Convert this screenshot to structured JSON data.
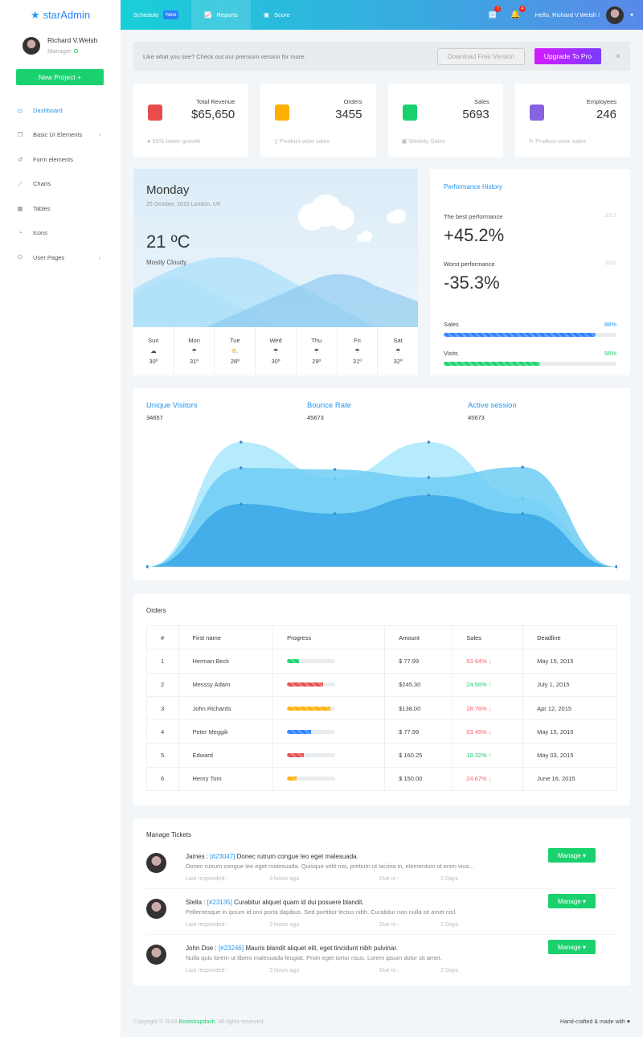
{
  "brand": {
    "name_a": "star",
    "name_b": "Admin"
  },
  "user": {
    "name": "Richard V.Welsh",
    "role": "Manager",
    "status_color": "#19d26e"
  },
  "sidebar": {
    "new_project": "New Project +",
    "items": [
      {
        "label": "Dashboard",
        "icon": "monitor-icon",
        "active": true
      },
      {
        "label": "Basic UI Elements",
        "icon": "copy-icon",
        "chevron": true
      },
      {
        "label": "Form elements",
        "icon": "restore-icon"
      },
      {
        "label": "Charts",
        "icon": "chart-line-icon"
      },
      {
        "label": "Tables",
        "icon": "table-icon"
      },
      {
        "label": "Icons",
        "icon": "palette-icon"
      },
      {
        "label": "User Pages",
        "icon": "power-icon",
        "chevron": true
      }
    ]
  },
  "topbar": {
    "schedule": "Schedule",
    "new_badge": "New",
    "reports": "Reports",
    "score": "Score",
    "messages_count": "7",
    "notifications_count": "4",
    "greeting": "Hello, Richard V.Welsh !"
  },
  "banner": {
    "text": "Like what you see? Check out our premium version for more.",
    "download": "Download Free Version",
    "upgrade": "Upgrade To Pro",
    "close": "×"
  },
  "stats": [
    {
      "label": "Total Revenue",
      "value": "$65,650",
      "sub": "65% lower growth",
      "color": "#e84c4c"
    },
    {
      "label": "Orders",
      "value": "3455",
      "sub": "Product-wise sales",
      "color": "#ffaf00"
    },
    {
      "label": "Sales",
      "value": "5693",
      "sub": "Weekly Sales",
      "color": "#19d26e"
    },
    {
      "label": "Employees",
      "value": "246",
      "sub": "Product-wise sales",
      "color": "#8862e0"
    }
  ],
  "weather": {
    "day": "Monday",
    "date": "25 October, 2016 London, UK",
    "temp": "21 ºC",
    "condition": "Mostly Cloudy",
    "forecast": [
      {
        "d": "Sun",
        "i": "☁",
        "t": "30º"
      },
      {
        "d": "Mon",
        "i": "☂",
        "t": "31º"
      },
      {
        "d": "Tue",
        "i": "⛅",
        "t": "28º"
      },
      {
        "d": "Wed",
        "i": "☂",
        "t": "30º"
      },
      {
        "d": "Thu",
        "i": "☂",
        "t": "29º"
      },
      {
        "d": "Fri",
        "i": "☂",
        "t": "31º"
      },
      {
        "d": "Sat",
        "i": "☂",
        "t": "32º"
      }
    ]
  },
  "performance": {
    "title": "Performance History",
    "best_label": "The best performance",
    "best_year": "2017",
    "best_value": "+45.2%",
    "worst_label": "Worst performance",
    "worst_year": "2015",
    "worst_value": "-35.3%",
    "sales_label": "Sales",
    "sales_pct": "88%",
    "sales_value": 88,
    "visits_label": "Visits",
    "visits_pct": "56%",
    "visits_value": 56
  },
  "chart_data": {
    "type": "area",
    "x": [
      1,
      2,
      3,
      4,
      5,
      6
    ],
    "series": [
      {
        "name": "Unique Visitors",
        "total": "34657",
        "values": [
          0,
          155,
          110,
          155,
          85,
          0
        ],
        "color": "#a8e8fb"
      },
      {
        "name": "Bounce Rate",
        "total": "45673",
        "values": [
          0,
          123,
          121,
          111,
          124,
          0
        ],
        "color": "#6fcdf3"
      },
      {
        "name": "Active session",
        "total": "45673",
        "values": [
          0,
          78,
          66,
          89,
          66,
          0
        ],
        "color": "#3aa8e6"
      }
    ]
  },
  "orders": {
    "title": "Orders",
    "columns": [
      "#",
      "First name",
      "Progress",
      "Amount",
      "Sales",
      "Deadline"
    ],
    "rows": [
      {
        "n": "1",
        "name": "Herman Beck",
        "progress": 25,
        "pc": "#19d26e",
        "amount": "$ 77.99",
        "sales": "53.64% ↓",
        "up": false,
        "deadline": "May 15, 2015"
      },
      {
        "n": "2",
        "name": "Messsy Adam",
        "progress": 75,
        "pc": "#e84c4c",
        "amount": "$245.30",
        "sales": "24.56% ↑",
        "up": true,
        "deadline": "July 1, 2015"
      },
      {
        "n": "3",
        "name": "John Richards",
        "progress": 90,
        "pc": "#ffaf00",
        "amount": "$138.00",
        "sales": "28.76% ↓",
        "up": false,
        "deadline": "Apr 12, 2015"
      },
      {
        "n": "4",
        "name": "Peter Meggik",
        "progress": 50,
        "pc": "#2b80ff",
        "amount": "$ 77.99",
        "sales": "53.45% ↓",
        "up": false,
        "deadline": "May 15, 2015"
      },
      {
        "n": "5",
        "name": "Edward",
        "progress": 35,
        "pc": "#e84c4c",
        "amount": "$ 160.25",
        "sales": "18.32% ↑",
        "up": true,
        "deadline": "May 03, 2015"
      },
      {
        "n": "6",
        "name": "Henry Tom",
        "progress": 20,
        "pc": "#ffaf00",
        "amount": "$ 150.00",
        "sales": "24.67% ↓",
        "up": false,
        "deadline": "June 16, 2015"
      }
    ]
  },
  "tickets": {
    "title": "Manage Tickets",
    "manage": "Manage ▾",
    "last_label": "Last responded :",
    "due_label": "Due in :",
    "items": [
      {
        "name": "James :",
        "id": "[#23047]",
        "subject": "Donec rutrum congue leo eget malesuada.",
        "desc": "Donec rutrum congue leo eget malesuada. Quisque velit nisi, pretium ut lacinia in, elementum id enim viva...",
        "last": "3 hours ago",
        "due": "2 Days"
      },
      {
        "name": "Stella :",
        "id": "[#23135]",
        "subject": "Curabitur aliquet quam id dui posuere blandit.",
        "desc": "Pellentesque in ipsum id orci porta dapibus. Sed porttitor lectus nibh. Curabitur non nulla sit amet nisl.",
        "last": "3 hours ago",
        "due": "2 Days"
      },
      {
        "name": "John Doe :",
        "id": "[#23246]",
        "subject": "Mauris blandit aliquet elit, eget tincidunt nibh pulvinar.",
        "desc": "Nulla quis lorem ut libero malesuada feugiat. Proin eget tortor risus. Lorem ipsum dolor sit amet.",
        "last": "3 hours ago",
        "due": "2 Days"
      }
    ]
  },
  "footer": {
    "copy_a": "Copyright © 2018 ",
    "link": "Bootstrapdash",
    "copy_b": ". All rights reserved.",
    "right": "Hand-crafted & made with ♥"
  }
}
